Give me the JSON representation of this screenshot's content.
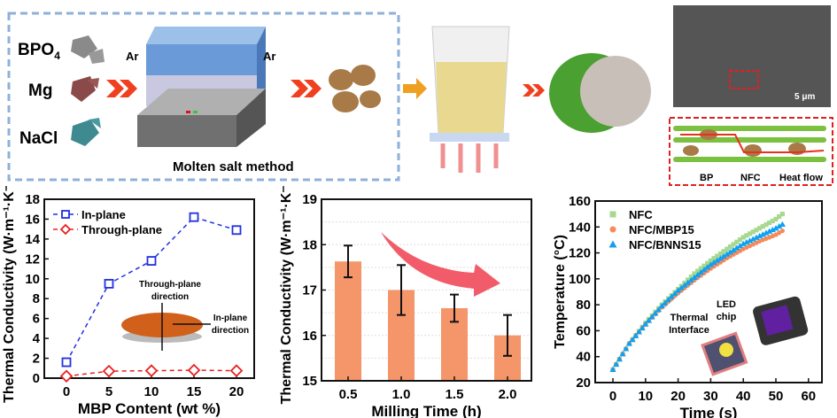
{
  "scheme": {
    "materials": [
      {
        "label": "BPO",
        "sub": "4",
        "color": "#8a8a8a"
      },
      {
        "label": "Mg",
        "sub": "",
        "color": "#8a4a4a"
      },
      {
        "label": "NaCl",
        "sub": "",
        "color": "#3f8a90"
      }
    ],
    "gas_label": "Ar",
    "method_label": "Molten salt method",
    "scale_bar": "5 μm",
    "legend": {
      "bp": "BP",
      "nfc": "NFC",
      "heat": "Heat flow"
    },
    "colors": {
      "box_border": "#8fb0d8",
      "chevron": "#f04020",
      "particle": "#a87a48",
      "fiber": "#7cc040",
      "heat": "#e8301a"
    }
  },
  "chart_data": [
    {
      "type": "line",
      "xlabel": "MBP Content (wt %)",
      "ylabel": "Thermal Conductivity (W·m⁻¹·K⁻¹)",
      "ylim": [
        0,
        18
      ],
      "yticks": [
        0,
        2,
        4,
        6,
        8,
        10,
        12,
        14,
        16,
        18
      ],
      "xticks": [
        0,
        5,
        10,
        15,
        20
      ],
      "legend_position": "top-left",
      "x": [
        0,
        5,
        10,
        15,
        20
      ],
      "series": [
        {
          "name": "In-plane",
          "marker": "square",
          "color": "#2030e0",
          "values": [
            1.6,
            9.5,
            11.8,
            16.2,
            14.9
          ],
          "errors": [
            0.2,
            0.3,
            0.2,
            0.45,
            0.2
          ]
        },
        {
          "name": "Through-plane",
          "marker": "diamond",
          "color": "#e82020",
          "values": [
            0.2,
            0.7,
            0.75,
            0.8,
            0.75
          ],
          "errors": [
            0,
            0,
            0,
            0,
            0
          ]
        }
      ],
      "inset": {
        "through": "Through-plane",
        "through2": "direction",
        "in": "In-plane",
        "in2": "direction",
        "disk_color": "#d0601a"
      }
    },
    {
      "type": "bar",
      "xlabel": "Milling Time (h)",
      "ylabel": "Thermal Conductivity (W·m⁻¹·K⁻¹)",
      "ylim": [
        15,
        19
      ],
      "yticks": [
        15,
        16,
        17,
        18,
        19
      ],
      "categories": [
        "0.5",
        "1.0",
        "1.5",
        "2.0"
      ],
      "values": [
        17.63,
        17.0,
        16.6,
        16.0
      ],
      "errors": [
        0.35,
        0.55,
        0.3,
        0.45
      ],
      "bar_color": "#f5956a",
      "arrow_color": "#f04050",
      "grid": true
    },
    {
      "type": "scatter",
      "xlabel": "Time (s)",
      "ylabel": "Temperature (°C)",
      "xlim": [
        -5,
        60
      ],
      "ylim": [
        20,
        160
      ],
      "xticks": [
        0,
        10,
        20,
        30,
        40,
        50,
        60
      ],
      "yticks": [
        20,
        40,
        60,
        80,
        100,
        120,
        140,
        160
      ],
      "legend_position": "top-left",
      "x": [
        0,
        5,
        10,
        15,
        20,
        25,
        30,
        35,
        40,
        45,
        50,
        52
      ],
      "series": [
        {
          "name": "NFC",
          "marker": "square",
          "color": "#a8d890",
          "values": [
            30,
            50,
            66,
            80,
            92,
            104,
            114,
            123,
            132,
            139,
            146,
            150
          ]
        },
        {
          "name": "NFC/MBP15",
          "marker": "circle",
          "color": "#f58a5a",
          "values": [
            30,
            50,
            65,
            78,
            89,
            99,
            108,
            116,
            123,
            129,
            134,
            137
          ]
        },
        {
          "name": "NFC/BNNS15",
          "marker": "triangle",
          "color": "#10a0f0",
          "values": [
            30,
            50,
            65,
            79,
            91,
            101,
            111,
            119,
            127,
            133,
            139,
            142
          ]
        }
      ],
      "inset": {
        "thermal": "Thermal",
        "interface": "Interface",
        "led": "LED",
        "chip": "chip"
      }
    }
  ]
}
